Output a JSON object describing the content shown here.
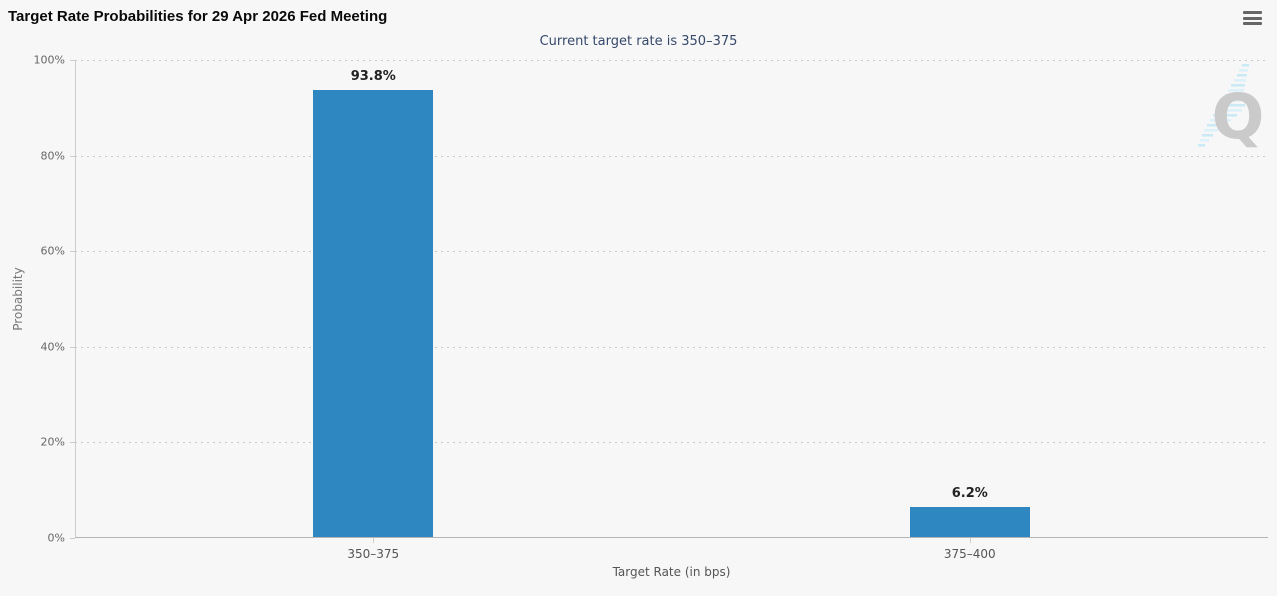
{
  "chart_data": {
    "type": "bar",
    "title": "Target Rate Probabilities for 29 Apr 2026 Fed Meeting",
    "subtitle": "Current target rate is 350–375",
    "categories": [
      "350–375",
      "375–400"
    ],
    "values": [
      93.8,
      6.2
    ],
    "data_labels": [
      "93.8%",
      "6.2%"
    ],
    "xlabel": "Target Rate (in bps)",
    "ylabel": "Probability",
    "ylim": [
      0,
      100
    ],
    "yticks": [
      0,
      20,
      40,
      60,
      80,
      100
    ],
    "ytick_labels": [
      "0%",
      "20%",
      "40%",
      "60%",
      "80%",
      "100%"
    ],
    "grid": "horizontal-dotted",
    "legend_position": "none",
    "bar_color": "#2f87c1"
  },
  "toolbar": {
    "menu_icon": "hamburger-menu"
  },
  "watermark": {
    "letter": "Q"
  },
  "colors": {
    "background": "#f7f7f7",
    "bar": "#2f87c1",
    "title_text": "#0a0a0a",
    "subtitle_text": "#36486b",
    "axis_text": "#666666",
    "grid_line": "#cccccc",
    "menu_icon": "#666666",
    "watermark_q": "#c6c6c6",
    "watermark_stripes": "#c7e9f6"
  }
}
